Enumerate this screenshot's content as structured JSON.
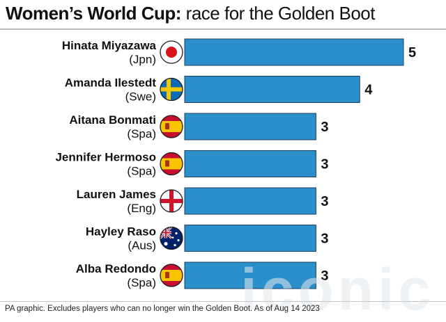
{
  "title": {
    "bold": "Women’s World Cup:",
    "light": " race for the Golden Boot"
  },
  "chart_data": {
    "type": "bar",
    "orientation": "horizontal",
    "title": "Women’s World Cup: race for the Golden Boot",
    "rows": [
      {
        "name": "Hinata Miyazawa",
        "country": "(Jpn)",
        "flag": "japan-flag",
        "value": 5
      },
      {
        "name": "Amanda Ilestedt",
        "country": "(Swe)",
        "flag": "sweden-flag",
        "value": 4
      },
      {
        "name": "Aitana Bonmati",
        "country": "(Spa)",
        "flag": "spain-flag",
        "value": 3
      },
      {
        "name": "Jennifer Hermoso",
        "country": "(Spa)",
        "flag": "spain-flag",
        "value": 3
      },
      {
        "name": "Lauren James",
        "country": "(Eng)",
        "flag": "england-flag",
        "value": 3
      },
      {
        "name": "Hayley Raso",
        "country": "(Aus)",
        "flag": "australia-flag",
        "value": 3
      },
      {
        "name": "Alba Redondo",
        "country": "(Spa)",
        "flag": "spain-flag",
        "value": 3
      }
    ],
    "categories": [
      "Hinata Miyazawa",
      "Amanda Ilestedt",
      "Aitana Bonmati",
      "Jennifer Hermoso",
      "Lauren James",
      "Hayley Raso",
      "Alba Redondo"
    ],
    "values": [
      5,
      4,
      3,
      3,
      3,
      3,
      3
    ],
    "xlim": [
      0,
      5
    ],
    "grid": false,
    "bar_color": "#2b8fcc",
    "bar_edge_color": "#1d3f5c"
  },
  "watermark": "iconic",
  "footer": "PA graphic. Excludes players who can no longer win the Golden Boot. As of Aug 14 2023"
}
